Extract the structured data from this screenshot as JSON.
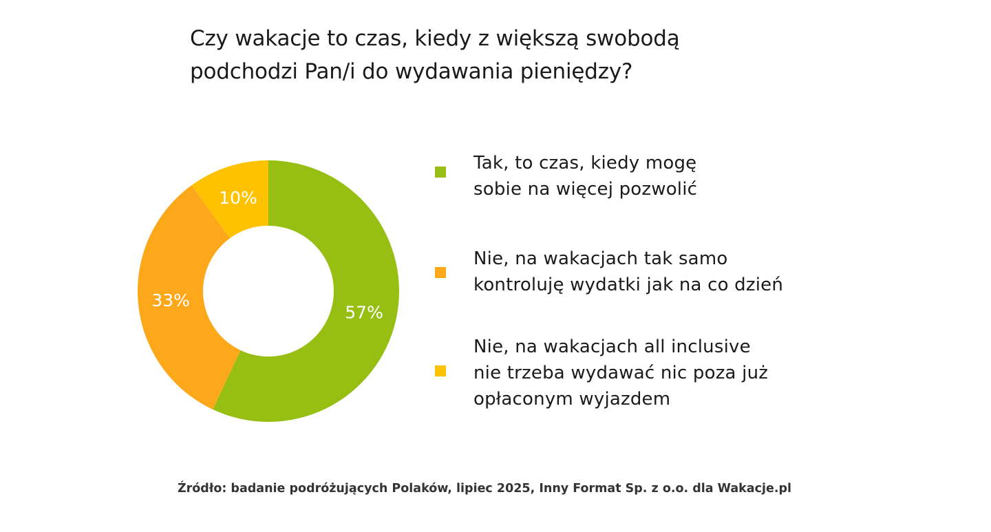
{
  "title": {
    "line1": "Czy wakacje to czas, kiedy z większą swobodą",
    "line2": "podchodzi Pan/i do wydawania pieniędzy?"
  },
  "chart_data": {
    "type": "pie",
    "variant": "donut",
    "start_angle": "12 o'clock, clockwise",
    "slices": [
      {
        "label_lines": [
          "Tak, to czas, kiedy mogę",
          "sobie na więcej pozwolić"
        ],
        "value": 57,
        "display": "57%",
        "color": "#97bf13"
      },
      {
        "label_lines": [
          "Nie, na wakacjach tak samo",
          "kontroluję wydatki jak na co dzień"
        ],
        "value": 33,
        "display": "33%",
        "color": "#fda71b"
      },
      {
        "label_lines": [
          "Nie, na wakacjach all inclusive",
          "nie trzeba wydawać nic poza już",
          "opłaconym wyjazdem"
        ],
        "value": 10,
        "display": "10%",
        "color": "#fec200"
      }
    ],
    "legend_position": "right"
  },
  "source": "Źródło: badanie podróżujących Polaków, lipiec 2025, Inny Format Sp. z o.o. dla Wakacje.pl"
}
